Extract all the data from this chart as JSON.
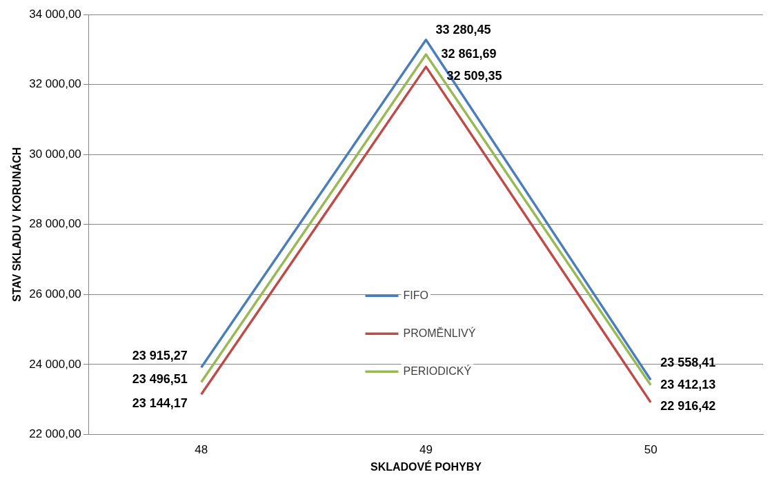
{
  "chart_data": {
    "type": "line",
    "xlabel": "SKLADOVÉ POHYBY",
    "ylabel": "STAV SKLADU V KORUNÁCH",
    "categories": [
      "48",
      "49",
      "50"
    ],
    "series": [
      {
        "name": "FIFO",
        "color": "#4a7ebb",
        "values": [
          23915.27,
          33280.45,
          23558.41
        ],
        "value_labels": [
          "23 915,27",
          "33 280,45",
          "23 558,41"
        ]
      },
      {
        "name": "PROMĚNLIVÝ",
        "color": "#be4b48",
        "values": [
          23144.17,
          32509.35,
          22916.42
        ],
        "value_labels": [
          "23 144,17",
          "32 509,35",
          "22 916,42"
        ]
      },
      {
        "name": "PERIODICKÝ",
        "color": "#98b954",
        "values": [
          23496.51,
          32861.69,
          23412.13
        ],
        "value_labels": [
          "23 496,51",
          "32 861,69",
          "23 412,13"
        ]
      }
    ],
    "ylim": [
      22000,
      34000
    ],
    "yticks": [
      {
        "value": 22000,
        "label": "22 000,00"
      },
      {
        "value": 24000,
        "label": "24 000,00"
      },
      {
        "value": 26000,
        "label": "26 000,00"
      },
      {
        "value": 28000,
        "label": "28 000,00"
      },
      {
        "value": 30000,
        "label": "30 000,00"
      },
      {
        "value": 32000,
        "label": "32 000,00"
      },
      {
        "value": 34000,
        "label": "34 000,00"
      }
    ],
    "grid": "y",
    "legend": "center",
    "marker": "none",
    "line_style": "solid"
  }
}
